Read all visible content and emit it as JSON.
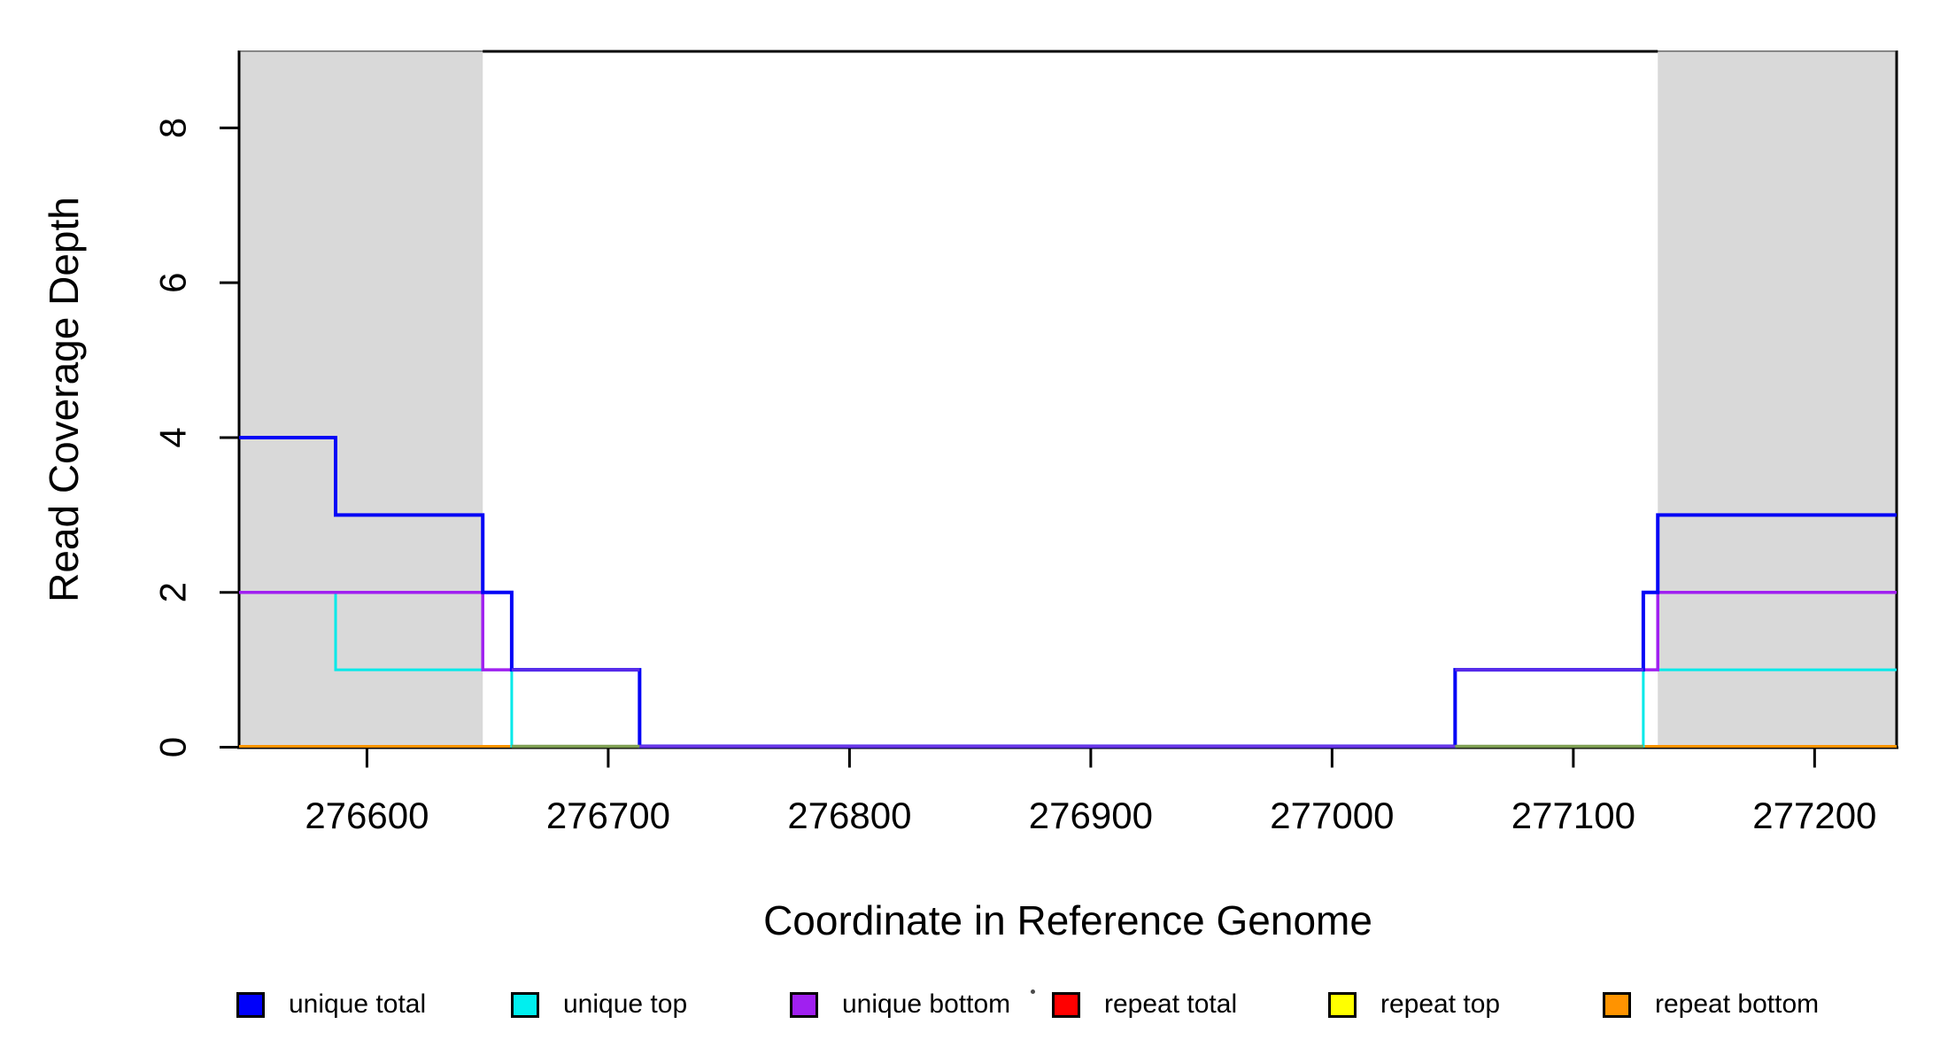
{
  "figure": {
    "x_axis_title": "Coordinate in Reference Genome",
    "y_axis_title": "Read Coverage Depth"
  },
  "legend": {
    "position": "bottom",
    "items": [
      {
        "label": "unique total",
        "color": "#0000FA"
      },
      {
        "label": "unique top",
        "color": "#00EFEF"
      },
      {
        "label": "unique bottom",
        "color": "#A020F0"
      },
      {
        "label": "repeat total",
        "color": "#FF0000"
      },
      {
        "label": "repeat top",
        "color": "#FFFF00"
      },
      {
        "label": "repeat bottom",
        "color": "#FF9300"
      }
    ]
  },
  "chart_data": {
    "type": "line",
    "subtype": "step",
    "title": "",
    "xlabel": "Coordinate in Reference Genome",
    "ylabel": "Read Coverage Depth",
    "xlim": [
      276547,
      277234
    ],
    "ylim": [
      0,
      9
    ],
    "xticks": [
      276600,
      276700,
      276800,
      276900,
      277000,
      277100,
      277200
    ],
    "yticks": [
      0,
      2,
      4,
      6,
      8
    ],
    "grid": false,
    "shade_color": "#D9D9D9",
    "shaded_regions": [
      {
        "x1": 276547,
        "x2": 276648
      },
      {
        "x1": 277135,
        "x2": 277234
      }
    ],
    "series": [
      {
        "name": "repeat total",
        "color": "#FF0000",
        "width": 3,
        "points": [
          [
            276547,
            0
          ],
          [
            277234,
            0
          ]
        ]
      },
      {
        "name": "repeat top",
        "color": "#FFFF00",
        "width": 3,
        "points": [
          [
            276547,
            0
          ],
          [
            277234,
            0
          ]
        ]
      },
      {
        "name": "repeat bottom",
        "color": "#FF9300",
        "width": 3,
        "points": [
          [
            276547,
            0
          ],
          [
            277234,
            0
          ]
        ]
      },
      {
        "name": "unique top",
        "color": "#00E9E9",
        "width": 3,
        "points": [
          [
            276547,
            2
          ],
          [
            276587,
            1
          ],
          [
            276660,
            0
          ],
          [
            277129,
            1
          ],
          [
            277234,
            1
          ]
        ]
      },
      {
        "name": "unique bottom",
        "color": "#A020F0",
        "width": 3.5,
        "points": [
          [
            276547,
            2
          ],
          [
            276648,
            1
          ],
          [
            276713,
            0
          ],
          [
            277051,
            1
          ],
          [
            277135,
            2
          ],
          [
            277234,
            2
          ]
        ]
      },
      {
        "name": "unique total",
        "color": "#0404F6",
        "width": 4,
        "points": [
          [
            276547,
            4
          ],
          [
            276587,
            3
          ],
          [
            276648,
            2
          ],
          [
            276660,
            1
          ],
          [
            276713,
            0
          ],
          [
            277051,
            1
          ],
          [
            277129,
            2
          ],
          [
            277135,
            3
          ],
          [
            277234,
            3
          ]
        ]
      }
    ],
    "overlap_blend_segments": [
      {
        "y": 0,
        "x1": 276660,
        "x2": 276713,
        "color": "#7FA053",
        "note": "cyan+yellow blend at depth 0"
      },
      {
        "y": 0,
        "x1": 276713,
        "x2": 277051,
        "color": "#6935E6",
        "note": "blue+purple blend at depth 0"
      },
      {
        "y": 0,
        "x1": 277051,
        "x2": 277129,
        "color": "#7FA053",
        "note": "cyan+yellow blend at depth 0"
      },
      {
        "y": 1,
        "x1": 276660,
        "x2": 276713,
        "color": "#5B2BE8",
        "note": "blue+purple blend at depth 1"
      },
      {
        "y": 1,
        "x1": 277051,
        "x2": 277129,
        "color": "#5B2BE8",
        "note": "blue+purple blend at depth 1"
      }
    ]
  }
}
